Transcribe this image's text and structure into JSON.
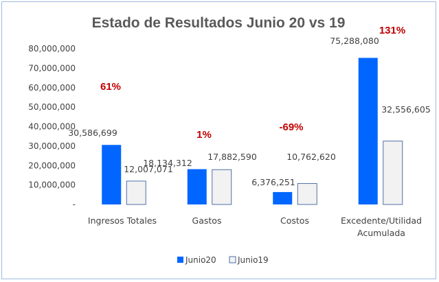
{
  "chart_data": {
    "type": "bar",
    "title": "Estado de Resultados Junio 20 vs  19",
    "categories": [
      "Ingresos Totales",
      "Gastos",
      "Costos",
      "Excedente/Utilidad Acumulada"
    ],
    "series": [
      {
        "name": "Junio20",
        "color": "#0066ff",
        "values": [
          30586699,
          18134312,
          6376251,
          75288080
        ]
      },
      {
        "name": "Junio19",
        "color": "#f2f2f2",
        "values": [
          12007071,
          17882590,
          10762620,
          32556605
        ]
      }
    ],
    "data_labels": [
      [
        "30,586,699",
        "18,134,312",
        "6,376,251",
        "75,288,080"
      ],
      [
        "12,007,071",
        "17,882,590",
        "10,762,620",
        "32,556,605"
      ]
    ],
    "percent_labels": [
      "61%",
      "1%",
      "-69%",
      "131%"
    ],
    "ylim": [
      0,
      80000000
    ],
    "yticks": [
      "-",
      "10,000,000",
      "20,000,000",
      "30,000,000",
      "40,000,000",
      "50,000,000",
      "60,000,000",
      "70,000,000",
      "80,000,000"
    ],
    "grid": false,
    "legend_position": "bottom"
  }
}
